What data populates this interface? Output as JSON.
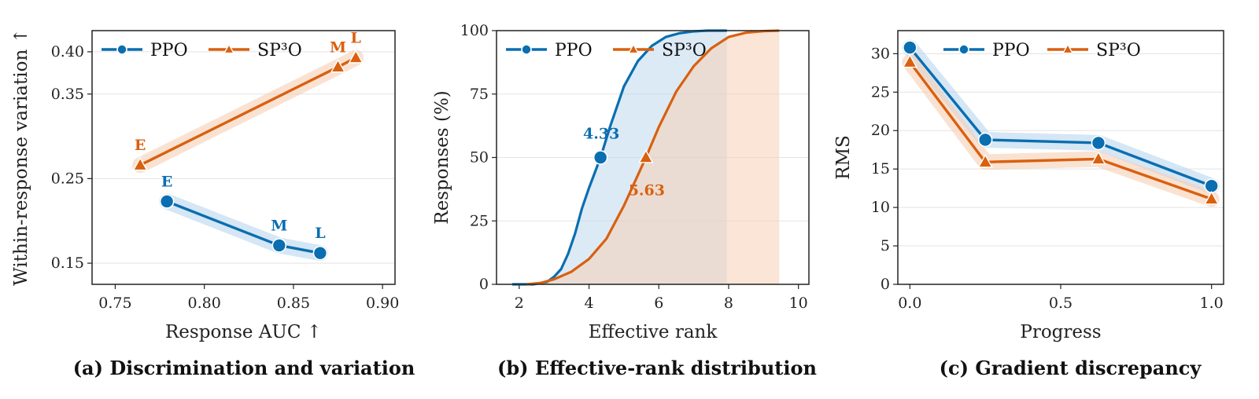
{
  "colors": {
    "ppo": "#0a6eb0",
    "sp3o": "#d9600f",
    "ppo_band": "#b9d6ee",
    "sp3o_band": "#f6cfb4",
    "grid": "#e3e3e3"
  },
  "chart_data": [
    {
      "type": "line",
      "caption": "(a) Discrimination and variation",
      "xlabel": "Response AUC  ↑",
      "ylabel": "Within-response variation  ↑",
      "xlim": [
        0.737,
        0.907
      ],
      "ylim": [
        0.125,
        0.425
      ],
      "xticks": [
        "0.75",
        "0.80",
        "0.85",
        "0.90"
      ],
      "yticks": [
        "0.15",
        "0.25",
        "0.35",
        "0.40"
      ],
      "grid": "horizontal",
      "legend_placement": "upper-left",
      "series": [
        {
          "name": "PPO",
          "marker": "circle",
          "x": [
            0.779,
            0.842,
            0.865
          ],
          "y": [
            0.223,
            0.171,
            0.162
          ],
          "point_labels": [
            "E",
            "M",
            "L"
          ]
        },
        {
          "name": "SP³O",
          "marker": "triangle",
          "x": [
            0.764,
            0.875,
            0.885
          ],
          "y": [
            0.266,
            0.382,
            0.393
          ],
          "point_labels": [
            "E",
            "M",
            "L"
          ]
        }
      ]
    },
    {
      "type": "area",
      "caption": "(b) Effective-rank distribution",
      "xlabel": "Effective rank",
      "ylabel": "Responses (%)",
      "xlim": [
        1.35,
        10.3
      ],
      "ylim": [
        0,
        100
      ],
      "xticks": [
        "2",
        "4",
        "6",
        "8",
        "10"
      ],
      "yticks": [
        "0",
        "25",
        "50",
        "75",
        "100"
      ],
      "grid": "horizontal",
      "legend_placement": "upper-left",
      "series": [
        {
          "name": "PPO",
          "marker": "circle",
          "x": [
            1.8,
            2.4,
            2.8,
            3.0,
            3.2,
            3.4,
            3.6,
            3.8,
            4.0,
            4.33,
            4.6,
            5.0,
            5.4,
            5.8,
            6.2,
            6.6,
            7.0,
            7.4,
            7.7,
            7.95
          ],
          "y": [
            0,
            0,
            1,
            3,
            6,
            12,
            20,
            30,
            38,
            50,
            62,
            78,
            88,
            94,
            97.5,
            99,
            99.7,
            100,
            100,
            100
          ],
          "median": 4.33,
          "median_label": "4.33"
        },
        {
          "name": "SP³O",
          "marker": "triangle",
          "x": [
            2.2,
            2.6,
            3.0,
            3.5,
            4.0,
            4.5,
            5.0,
            5.63,
            6.0,
            6.5,
            7.0,
            7.5,
            8.0,
            8.5,
            9.0,
            9.45
          ],
          "y": [
            0,
            0.5,
            2,
            5,
            10,
            18,
            31,
            50,
            62,
            76,
            86,
            93,
            97.5,
            99.2,
            99.8,
            100
          ],
          "median": 5.63,
          "median_label": "5.63"
        }
      ]
    },
    {
      "type": "line",
      "caption": "(c) Gradient discrepancy",
      "xlabel": "Progress",
      "ylabel": "RMS",
      "xlim": [
        -0.04,
        1.04
      ],
      "ylim": [
        0,
        33
      ],
      "xticks": [
        "0.0",
        "0.5",
        "1.0"
      ],
      "yticks": [
        "0",
        "5",
        "10",
        "15",
        "20",
        "25",
        "30"
      ],
      "grid": "horizontal",
      "legend_placement": "upper-center",
      "series": [
        {
          "name": "PPO",
          "marker": "circle",
          "x": [
            0.0,
            0.25,
            0.625,
            1.0
          ],
          "y": [
            30.8,
            18.8,
            18.4,
            12.8
          ]
        },
        {
          "name": "SP³O",
          "marker": "triangle",
          "x": [
            0.0,
            0.25,
            0.625,
            1.0
          ],
          "y": [
            28.9,
            15.9,
            16.3,
            11.1
          ]
        }
      ]
    }
  ]
}
